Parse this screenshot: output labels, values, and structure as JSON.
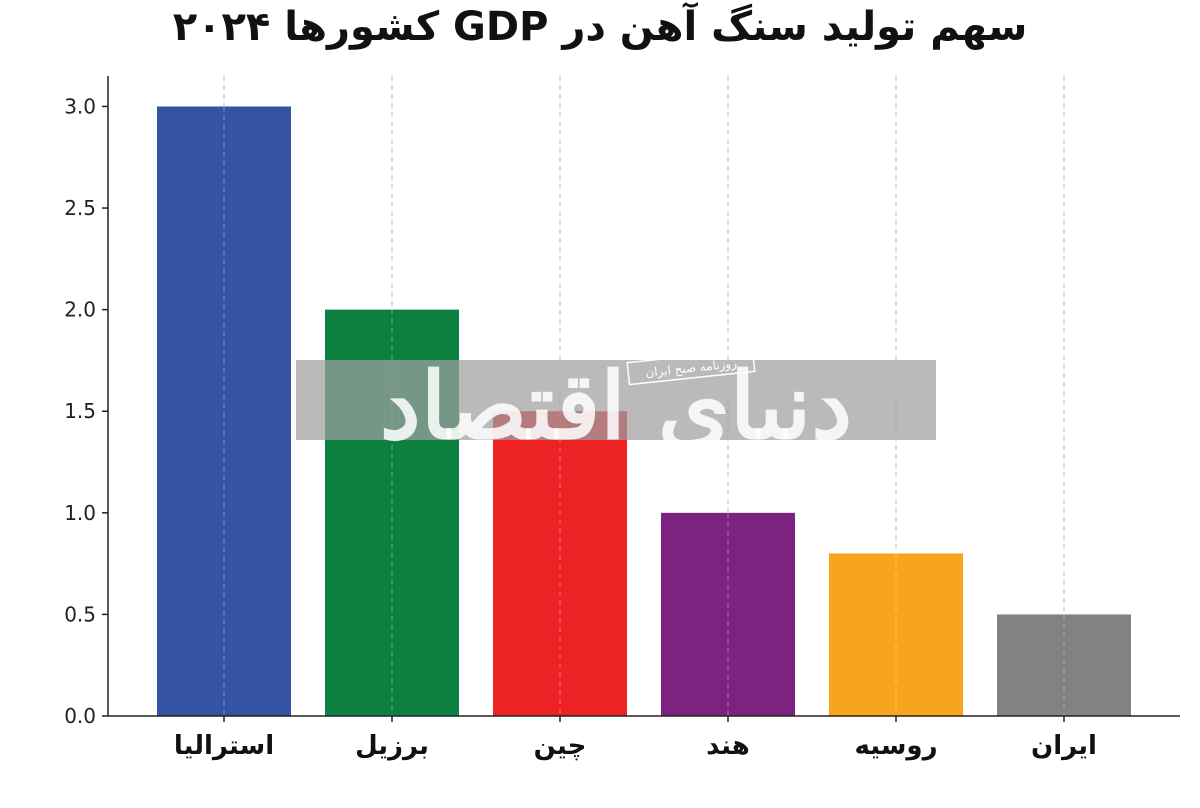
{
  "chart_data": {
    "type": "bar",
    "title": "سهم تولید سنگ آهن در GDP کشورها ۲۰۲۴",
    "xlabel": "",
    "ylabel": "",
    "categories": [
      "استرالیا",
      "برزیل",
      "چین",
      "هند",
      "روسیه",
      "ایران"
    ],
    "values": [
      3.0,
      2.0,
      1.5,
      1.0,
      0.8,
      0.5
    ],
    "colors": [
      "#3652a3",
      "#0d8040",
      "#ec2224",
      "#7b237f",
      "#f6a51c",
      "#828282"
    ],
    "ylim": [
      0,
      3.15
    ],
    "yticks": [
      "0.0",
      "0.5",
      "1.0",
      "1.5",
      "2.0",
      "2.5",
      "3.0"
    ],
    "grid": "vertical dashed",
    "legend": "none"
  },
  "watermark": {
    "text": "دنیای اقتصاد",
    "tagline": "روزنامه صبح ایران"
  }
}
